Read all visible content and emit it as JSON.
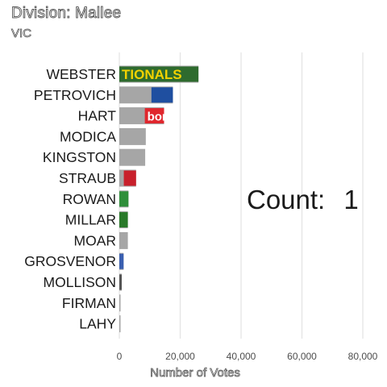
{
  "page": {
    "title": "Division: Mallee",
    "subtitle": "VIC"
  },
  "counter": {
    "label": "Count:",
    "value": "1"
  },
  "chart_data": {
    "type": "bar",
    "orientation": "horizontal",
    "categories": [
      "WEBSTER",
      "PETROVICH",
      "HART",
      "MODICA",
      "KINGSTON",
      "STRAUB",
      "ROWAN",
      "MILLAR",
      "MOAR",
      "GROSVENOR",
      "MOLLISON",
      "FIRMAN",
      "LAHY"
    ],
    "values": [
      26000,
      17600,
      14700,
      8700,
      8500,
      5500,
      3000,
      2800,
      2800,
      1400,
      800,
      300,
      250
    ],
    "bar_color": "#a6a6a6",
    "party_logos": {
      "WEBSTER": {
        "text": "TIONALS",
        "bg": "#2e6b2e",
        "fg": "#f2d200"
      },
      "PETROVICH": {
        "text": "",
        "bg": "#1f4fa0",
        "fg": "#ffffff"
      },
      "HART": {
        "text": "bor",
        "bg": "#e0262d",
        "fg": "#ffffff"
      },
      "STRAUB": {
        "text": "",
        "bg": "#c8202b",
        "fg": "#1f4fa0"
      },
      "ROWAN": {
        "text": "",
        "bg": "#2f8f3a",
        "fg": "#ffffff"
      },
      "MILLAR": {
        "text": "",
        "bg": "#2a7a2a",
        "fg": "#f2d200"
      },
      "GROSVENOR": {
        "text": "",
        "bg": "#3a5fb0",
        "fg": "#ffffff"
      },
      "MOLLISON": {
        "text": "",
        "bg": "#555555",
        "fg": "#ffffff"
      }
    },
    "x_ticks": [
      "0",
      "20,000",
      "40,000",
      "60,000",
      "80,000"
    ],
    "x_tick_values": [
      0,
      20000,
      40000,
      60000,
      80000
    ],
    "xlim": [
      0,
      80000
    ],
    "xlabel": "Number of Votes",
    "ylabel": "",
    "grid": "vertical"
  }
}
